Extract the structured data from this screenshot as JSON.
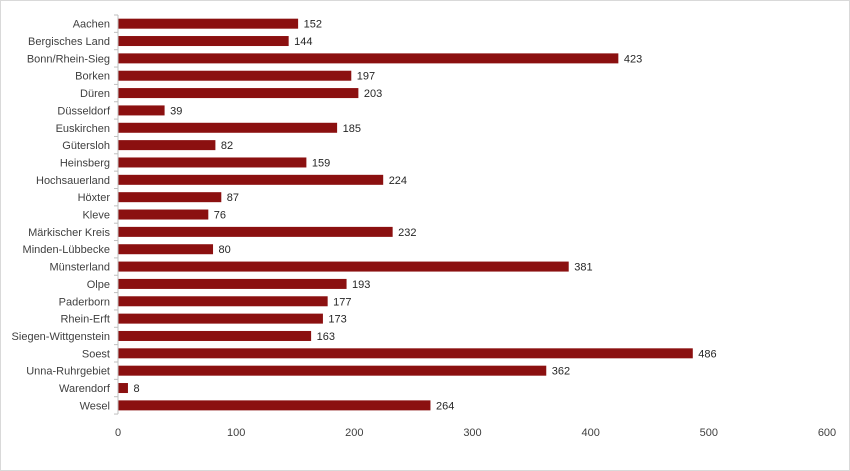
{
  "chart_data": {
    "type": "bar",
    "orientation": "horizontal",
    "title": "",
    "xlabel": "",
    "ylabel": "",
    "categories": [
      "Aachen",
      "Bergisches Land",
      "Bonn/Rhein-Sieg",
      "Borken",
      "Düren",
      "Düsseldorf",
      "Euskirchen",
      "Gütersloh",
      "Heinsberg",
      "Hochsauerland",
      "Höxter",
      "Kleve",
      "Märkischer Kreis",
      "Minden-Lübbecke",
      "Münsterland",
      "Olpe",
      "Paderborn",
      "Rhein-Erft",
      "Siegen-Wittgenstein",
      "Soest",
      "Unna-Ruhrgebiet",
      "Warendorf",
      "Wesel"
    ],
    "values": [
      152,
      144,
      423,
      197,
      203,
      39,
      185,
      82,
      159,
      224,
      87,
      76,
      232,
      80,
      381,
      193,
      177,
      173,
      163,
      486,
      362,
      8,
      264
    ],
    "xlim": [
      0,
      600
    ],
    "xticks": [
      0,
      100,
      200,
      300,
      400,
      500,
      600
    ],
    "grid": false,
    "legend": "none",
    "bar_color": "#8b1010",
    "data_labels": true
  }
}
